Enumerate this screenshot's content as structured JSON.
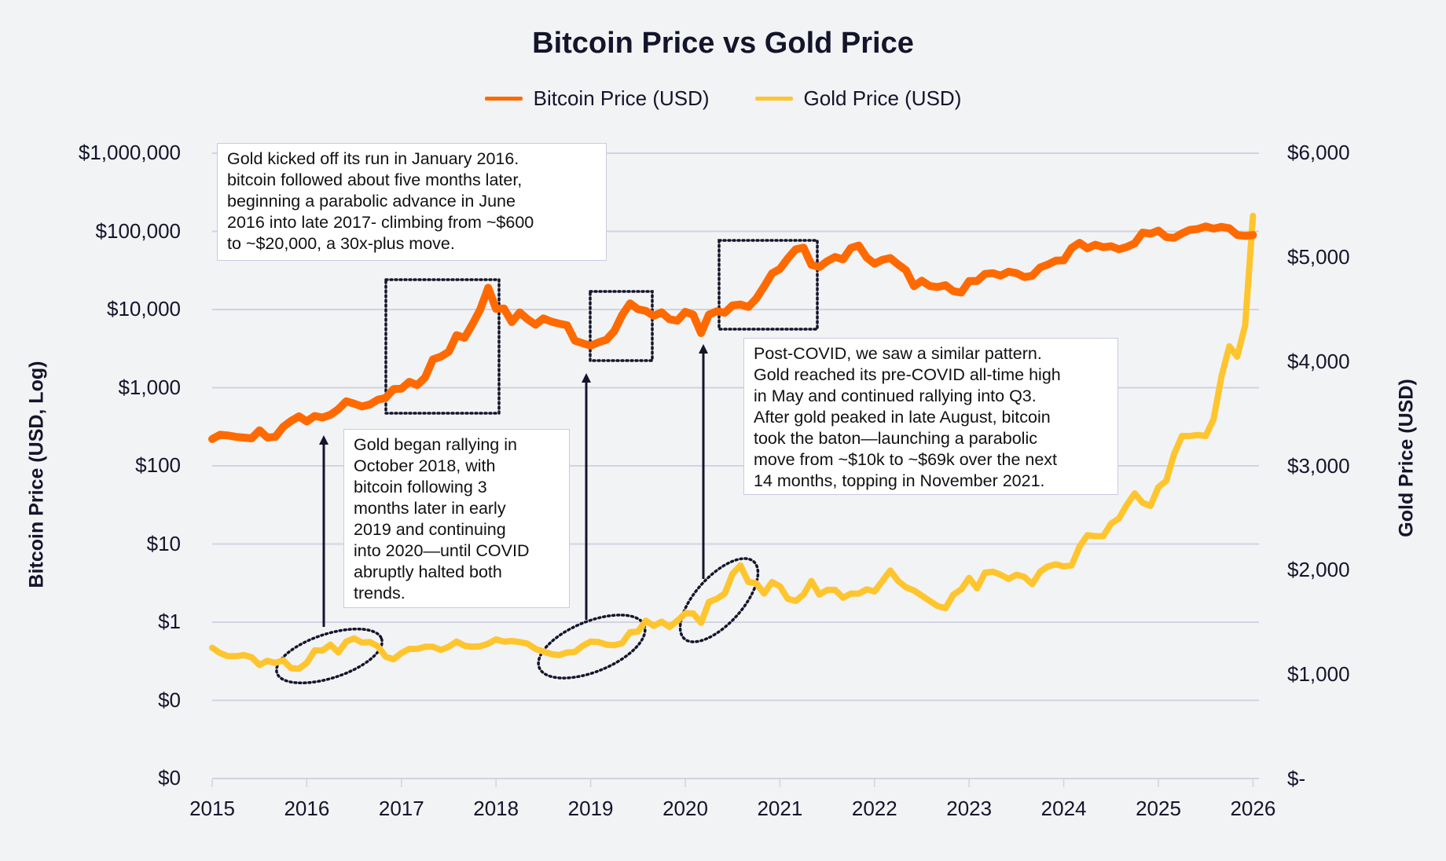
{
  "chart_data": {
    "type": "line",
    "title": "Bitcoin Price vs Gold Price",
    "legend": {
      "placement": "top-center",
      "entries": [
        "Bitcoin Price (USD)",
        "Gold Price (USD)"
      ]
    },
    "xlabel": "",
    "x_ticks": [
      "2015",
      "2016",
      "2017",
      "2018",
      "2019",
      "2020",
      "2021",
      "2022",
      "2023",
      "2024",
      "2025",
      "2026"
    ],
    "y_left": {
      "label": "Bitcoin Price (USD, Log)",
      "scale": "log",
      "ticks": [
        "$1,000,000",
        "$100,000",
        "$10,000",
        "$1,000",
        "$100",
        "$10",
        "$1",
        "$0",
        "$0"
      ],
      "tick_values": [
        1000000,
        100000,
        10000,
        1000,
        100,
        10,
        1,
        0.1,
        0.01
      ]
    },
    "y_right": {
      "label": "Gold Price (USD)",
      "scale": "linear",
      "ticks": [
        "$6,000",
        "$5,000",
        "$4,000",
        "$3,000",
        "$2,000",
        "$1,000",
        "$-"
      ],
      "tick_values": [
        6000,
        5000,
        4000,
        3000,
        2000,
        1000,
        0
      ],
      "range": [
        0,
        6000
      ]
    },
    "grid": true,
    "series": [
      {
        "name": "Bitcoin Price (USD)",
        "axis": "left",
        "color": "#ff6a00",
        "monthly_by_year": {
          "2015": [
            220,
            250,
            245,
            235,
            230,
            225,
            285,
            230,
            235,
            315,
            375,
            430
          ],
          "2016": [
            370,
            435,
            415,
            450,
            530,
            670,
            625,
            575,
            610,
            700,
            740,
            960
          ],
          "2017": [
            970,
            1190,
            1080,
            1350,
            2300,
            2500,
            2870,
            4700,
            4340,
            6470,
            10000,
            19000
          ],
          "2018": [
            10200,
            10300,
            6900,
            9200,
            7500,
            6400,
            7700,
            7000,
            6600,
            6300,
            4000,
            3700
          ],
          "2019": [
            3450,
            3800,
            4100,
            5300,
            8500,
            12000,
            10100,
            9600,
            8300,
            9200,
            7500,
            7200
          ],
          "2020": [
            9350,
            8600,
            5000,
            8600,
            9500,
            9100,
            11300,
            11600,
            10800,
            13800,
            19700,
            29000
          ],
          "2021": [
            33000,
            45000,
            58800,
            62000,
            37300,
            35000,
            41500,
            47000,
            43800,
            61300,
            66000,
            46300
          ],
          "2022": [
            38500,
            43200,
            45500,
            37700,
            31800,
            19900,
            23300,
            20000,
            19400,
            20500,
            17200,
            16500
          ],
          "2023": [
            23100,
            23100,
            28500,
            29200,
            27200,
            30500,
            29200,
            26000,
            27000,
            34500,
            37700,
            42300
          ],
          "2024": [
            42600,
            61200,
            71300,
            60600,
            67500,
            62700,
            64600,
            58900,
            63300,
            70200,
            96400,
            93400
          ],
          "2025": [
            102400,
            84400,
            82500,
            94200,
            104600,
            107200,
            115700,
            108200,
            114000,
            109500,
            90000,
            87500
          ],
          "2026": [
            90000
          ]
        }
      },
      {
        "name": "Gold Price (USD)",
        "axis": "right",
        "color": "#ffc52e",
        "monthly_by_year": {
          "2015": [
            1260,
            1210,
            1180,
            1180,
            1190,
            1170,
            1095,
            1135,
            1115,
            1140,
            1065,
            1060
          ],
          "2016": [
            1115,
            1235,
            1235,
            1290,
            1215,
            1320,
            1350,
            1310,
            1315,
            1275,
            1175,
            1150
          ],
          "2017": [
            1210,
            1250,
            1250,
            1270,
            1270,
            1240,
            1270,
            1320,
            1280,
            1270,
            1275,
            1300
          ],
          "2018": [
            1340,
            1320,
            1325,
            1315,
            1300,
            1250,
            1225,
            1200,
            1190,
            1215,
            1220,
            1280
          ],
          "2019": [
            1320,
            1315,
            1290,
            1285,
            1305,
            1410,
            1415,
            1520,
            1470,
            1510,
            1460,
            1520
          ],
          "2020": [
            1590,
            1590,
            1500,
            1700,
            1730,
            1780,
            1970,
            2050,
            1890,
            1880,
            1780,
            1890
          ],
          "2021": [
            1850,
            1730,
            1710,
            1770,
            1900,
            1770,
            1815,
            1815,
            1740,
            1780,
            1780,
            1820
          ],
          "2022": [
            1800,
            1900,
            2000,
            1900,
            1840,
            1810,
            1760,
            1710,
            1660,
            1640,
            1770,
            1820
          ],
          "2023": [
            1930,
            1830,
            1980,
            1990,
            1960,
            1920,
            1960,
            1940,
            1870,
            1990,
            2040,
            2060
          ],
          "2024": [
            2040,
            2050,
            2230,
            2340,
            2330,
            2330,
            2450,
            2500,
            2630,
            2740,
            2650,
            2620
          ],
          "2025": [
            2800,
            2860,
            3120,
            3290,
            3290,
            3300,
            3290,
            3450,
            3860,
            4150,
            4050,
            4350
          ],
          "2026": [
            5400
          ]
        }
      }
    ],
    "annotations": [
      {
        "text": "Gold kicked off its run in January 2016.\nbitcoin followed about five months later,\nbeginning a parabolic advance in June\n2016 into late 2017- climbing from ~$600\nto ~$20,000, a 30x-plus move."
      },
      {
        "text": "Gold began rallying in\nOctober 2018, with\nbitcoin following  3\nmonths later in early\n2019 and continuing\ninto 2020—until COVID\nabruptly halted both\ntrends."
      },
      {
        "text": "Post-COVID, we saw a similar pattern.\nGold reached its pre-COVID all-time high\nin May and continued rallying into Q3.\nAfter gold peaked in late August, bitcoin\ntook the baton—launching a parabolic\nmove from ~$10k to ~$69k over the next\n14 months, topping in November 2021."
      }
    ]
  }
}
